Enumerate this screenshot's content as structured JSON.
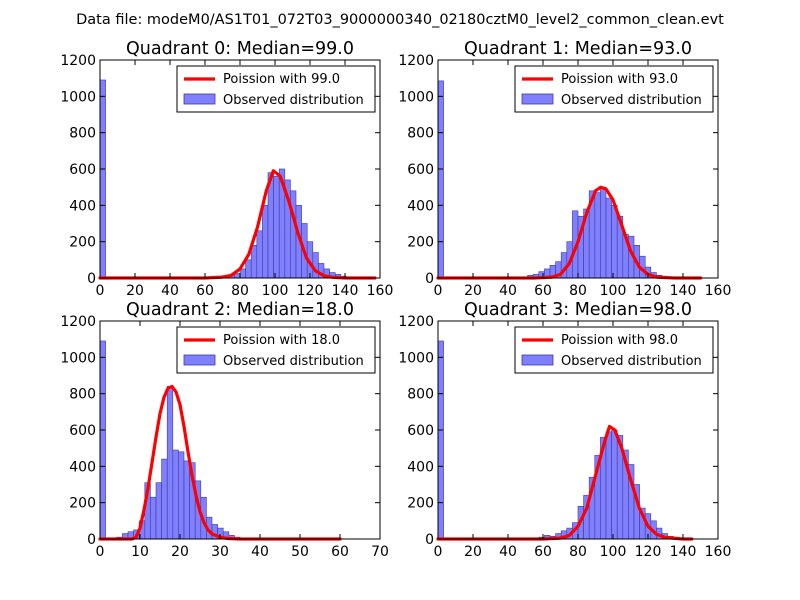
{
  "suptitle": "Data file: modeM0/AS1T01_072T03_9000000340_02180cztM0_level2_common_clean.evt",
  "colors": {
    "hist_fill": "#8080ff",
    "hist_edge": "#3a3aa0",
    "poisson_line": "#ff0000",
    "axis": "#000000"
  },
  "chart_data": [
    {
      "type": "bar",
      "title": "Quadrant 0: Median=99.0",
      "xlim": [
        0,
        160
      ],
      "ylim": [
        0,
        1200
      ],
      "xticks": [
        0,
        20,
        40,
        60,
        80,
        100,
        120,
        140,
        160
      ],
      "yticks": [
        0,
        200,
        400,
        600,
        800,
        1000,
        1200
      ],
      "bin_width": 3.2,
      "hist_x": [
        0,
        3.2,
        6.4,
        9.6,
        12.8,
        16,
        19.2,
        22.4,
        25.6,
        28.8,
        32,
        35.2,
        38.4,
        41.6,
        44.8,
        48,
        51.2,
        54.4,
        57.6,
        60.8,
        64,
        67.2,
        70.4,
        73.6,
        76.8,
        80,
        83.2,
        86.4,
        89.6,
        92.8,
        96,
        99.2,
        102.4,
        105.6,
        108.8,
        112,
        115.2,
        118.4,
        121.6,
        124.8,
        128,
        131.2,
        134.4,
        137.6,
        140.8,
        144,
        147.2,
        150.4,
        153.6
      ],
      "hist_y": [
        1090,
        0,
        0,
        0,
        0,
        0,
        0,
        0,
        0,
        0,
        0,
        0,
        0,
        0,
        0,
        0,
        0,
        0,
        0,
        0,
        10,
        5,
        10,
        15,
        25,
        50,
        100,
        180,
        260,
        400,
        580,
        560,
        600,
        540,
        480,
        400,
        300,
        200,
        140,
        80,
        50,
        30,
        20,
        10,
        5,
        3,
        0,
        0,
        0
      ],
      "poisson_label": "Poission with 99.0",
      "poisson_peak": 590,
      "poisson_x": [
        0,
        60,
        70,
        75,
        80,
        85,
        90,
        95,
        99,
        103,
        108,
        113,
        118,
        123,
        128,
        133,
        140,
        157
      ],
      "poisson_y": [
        0,
        0,
        5,
        15,
        50,
        130,
        280,
        480,
        590,
        560,
        420,
        250,
        110,
        40,
        12,
        4,
        0,
        0
      ],
      "legend": [
        "Poission with 99.0",
        "Observed distribution"
      ],
      "legend_loc": "upper-right"
    },
    {
      "type": "bar",
      "title": "Quadrant 1: Median=93.0",
      "xlim": [
        0,
        160
      ],
      "ylim": [
        0,
        1200
      ],
      "xticks": [
        0,
        20,
        40,
        60,
        80,
        100,
        120,
        140,
        160
      ],
      "yticks": [
        0,
        200,
        400,
        600,
        800,
        1000,
        1200
      ],
      "bin_width": 3.2,
      "hist_x": [
        0,
        3.2,
        6.4,
        9.6,
        12.8,
        16,
        19.2,
        22.4,
        25.6,
        28.8,
        32,
        35.2,
        38.4,
        41.6,
        44.8,
        48,
        51.2,
        54.4,
        57.6,
        60.8,
        64,
        67.2,
        70.4,
        73.6,
        76.8,
        80,
        83.2,
        86.4,
        89.6,
        92.8,
        96,
        99.2,
        102.4,
        105.6,
        108.8,
        112,
        115.2,
        118.4,
        121.6,
        124.8,
        128,
        131.2,
        134.4,
        137.6,
        140.8,
        144,
        147.2,
        150.4
      ],
      "hist_y": [
        1085,
        0,
        0,
        0,
        0,
        0,
        0,
        0,
        0,
        0,
        0,
        0,
        0,
        0,
        0,
        0,
        15,
        20,
        35,
        50,
        70,
        90,
        140,
        200,
        370,
        340,
        380,
        480,
        470,
        500,
        440,
        400,
        340,
        240,
        230,
        180,
        120,
        60,
        30,
        15,
        10,
        5,
        3,
        0,
        0,
        0,
        0,
        0
      ],
      "poisson_label": "Poission with 93.0",
      "poisson_peak": 500,
      "poisson_x": [
        0,
        55,
        65,
        70,
        75,
        80,
        85,
        90,
        93,
        96,
        100,
        105,
        110,
        115,
        120,
        125,
        135,
        150
      ],
      "poisson_y": [
        0,
        0,
        5,
        20,
        80,
        200,
        360,
        480,
        500,
        490,
        430,
        290,
        150,
        60,
        20,
        5,
        0,
        0
      ],
      "legend": [
        "Poission with 93.0",
        "Observed distribution"
      ],
      "legend_loc": "upper-right"
    },
    {
      "type": "bar",
      "title": "Quadrant 2: Median=18.0",
      "xlim": [
        0,
        70
      ],
      "ylim": [
        0,
        1200
      ],
      "xticks": [
        0,
        10,
        20,
        30,
        40,
        50,
        60,
        70
      ],
      "yticks": [
        0,
        200,
        400,
        600,
        800,
        1000,
        1200
      ],
      "bin_width": 1.4,
      "hist_x": [
        0,
        1.4,
        2.8,
        4.2,
        5.6,
        7,
        8.4,
        9.8,
        11.2,
        12.6,
        14,
        15.4,
        16.8,
        18.2,
        19.6,
        21,
        22.4,
        23.8,
        25.2,
        26.6,
        28,
        29.4,
        30.8,
        32.2,
        33.6,
        35,
        36.4,
        37.8,
        39.2,
        40.6,
        42,
        43.4,
        44.8,
        46.2,
        47.6,
        49,
        50.4,
        51.8,
        53.2,
        54.6,
        56,
        57.4,
        58.8,
        60.2
      ],
      "hist_y": [
        1090,
        0,
        0,
        10,
        30,
        40,
        50,
        100,
        310,
        230,
        310,
        440,
        840,
        490,
        480,
        430,
        420,
        320,
        230,
        120,
        80,
        60,
        40,
        20,
        10,
        5,
        3,
        2,
        1,
        1,
        1,
        1,
        0,
        0,
        0,
        0,
        0,
        3,
        0,
        0,
        0,
        0,
        0,
        0
      ],
      "poisson_label": "Poission with 18.0",
      "poisson_peak": 840,
      "poisson_x": [
        0,
        8,
        9,
        10,
        11,
        12,
        13,
        14,
        15,
        16,
        17,
        18,
        19,
        20,
        21,
        22,
        23,
        24,
        25,
        26,
        27,
        28,
        30,
        32,
        35,
        40,
        60
      ],
      "poisson_y": [
        0,
        0,
        10,
        60,
        160,
        280,
        420,
        560,
        690,
        780,
        830,
        840,
        810,
        740,
        620,
        480,
        350,
        240,
        150,
        90,
        50,
        28,
        10,
        3,
        0,
        0,
        0
      ],
      "legend": [
        "Poission with 18.0",
        "Observed distribution"
      ],
      "legend_loc": "upper-right"
    },
    {
      "type": "bar",
      "title": "Quadrant 3: Median=98.0",
      "xlim": [
        0,
        160
      ],
      "ylim": [
        0,
        1200
      ],
      "xticks": [
        0,
        20,
        40,
        60,
        80,
        100,
        120,
        140,
        160
      ],
      "yticks": [
        0,
        200,
        400,
        600,
        800,
        1000,
        1200
      ],
      "bin_width": 3.2,
      "hist_x": [
        0,
        3.2,
        6.4,
        9.6,
        12.8,
        16,
        19.2,
        22.4,
        25.6,
        28.8,
        32,
        35.2,
        38.4,
        41.6,
        44.8,
        48,
        51.2,
        54.4,
        57.6,
        60.8,
        64,
        67.2,
        70.4,
        73.6,
        76.8,
        80,
        83.2,
        86.4,
        89.6,
        92.8,
        96,
        99.2,
        102.4,
        105.6,
        108.8,
        112,
        115.2,
        118.4,
        121.6,
        124.8,
        128,
        131.2,
        134.4,
        137.6,
        140.8,
        144
      ],
      "hist_y": [
        1090,
        0,
        0,
        0,
        0,
        0,
        0,
        0,
        0,
        0,
        0,
        0,
        0,
        0,
        0,
        0,
        0,
        5,
        10,
        20,
        15,
        30,
        45,
        60,
        90,
        180,
        240,
        340,
        460,
        560,
        590,
        600,
        570,
        490,
        410,
        300,
        170,
        140,
        100,
        60,
        30,
        15,
        5,
        3,
        0,
        0
      ],
      "poisson_label": "Poission with 98.0",
      "poisson_peak": 620,
      "poisson_x": [
        0,
        60,
        70,
        75,
        80,
        85,
        90,
        95,
        98,
        101,
        105,
        110,
        115,
        120,
        125,
        130,
        140,
        145
      ],
      "poisson_y": [
        0,
        0,
        5,
        20,
        70,
        170,
        350,
        530,
        620,
        600,
        500,
        330,
        170,
        70,
        25,
        8,
        0,
        0
      ],
      "legend": [
        "Poission with 98.0",
        "Observed distribution"
      ],
      "legend_loc": "upper-right"
    }
  ]
}
